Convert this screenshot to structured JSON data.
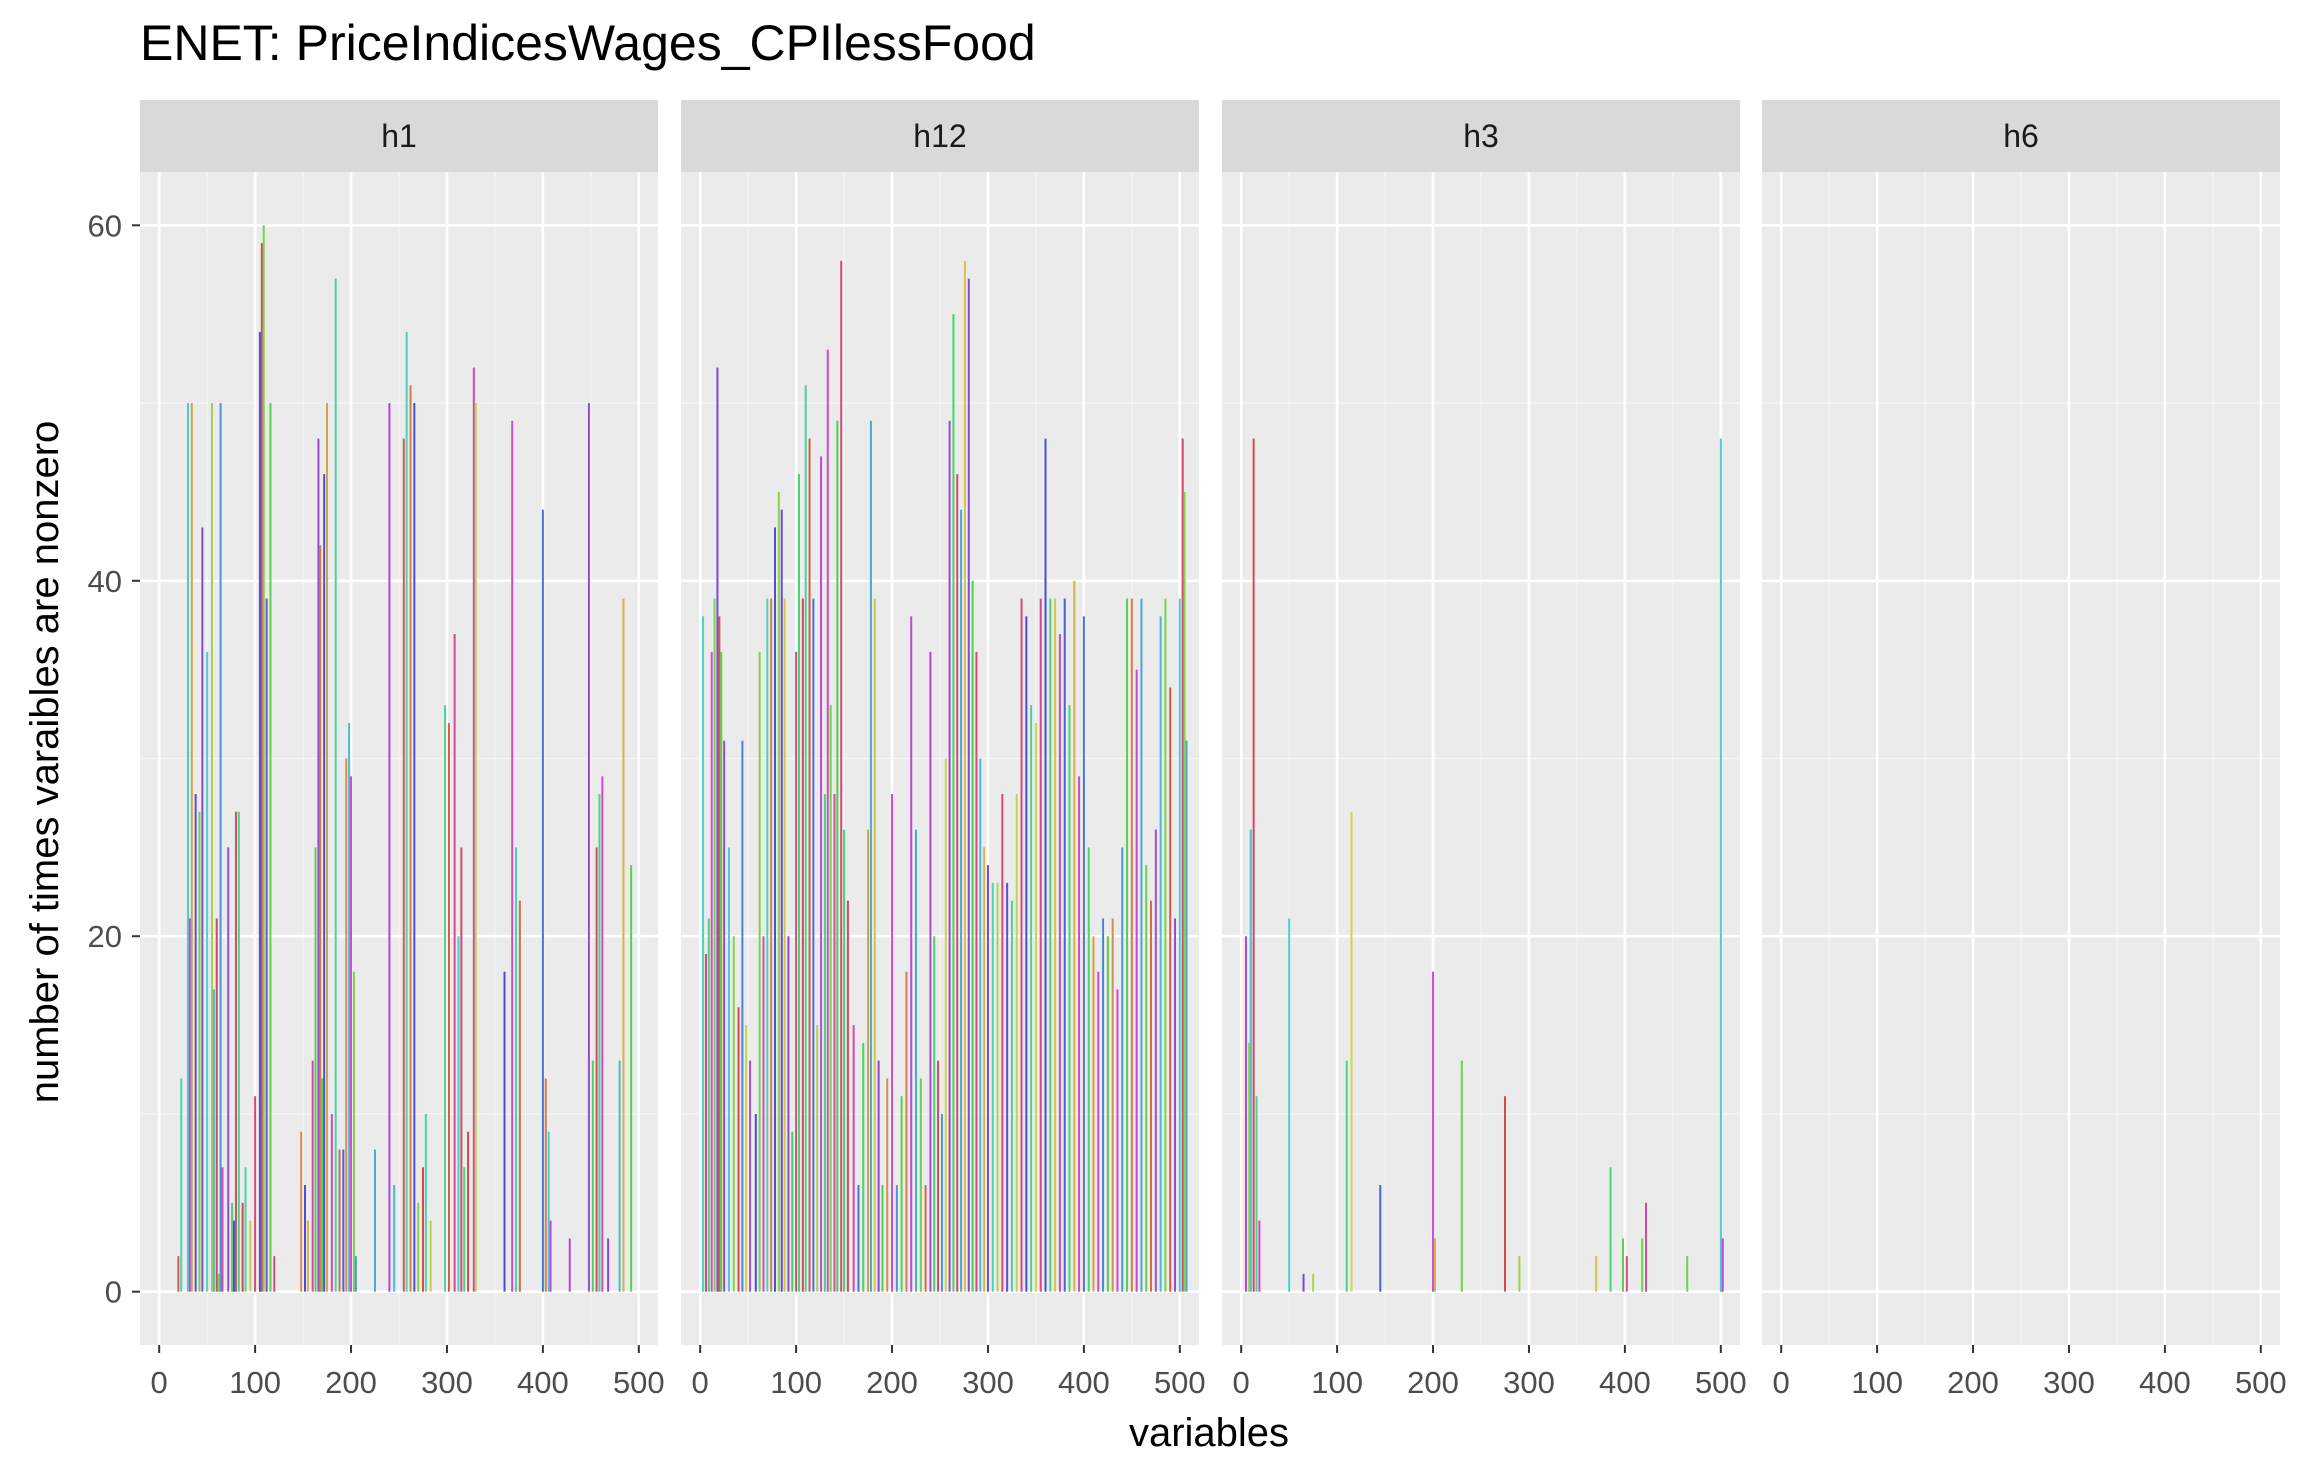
{
  "chart_data": {
    "type": "bar",
    "title": "ENET: PriceIndicesWages_CPIlessFood",
    "xlabel": "variables",
    "ylabel": "number of times varaibles are nonzero",
    "xlim": [
      -20,
      520
    ],
    "ylim": [
      -3,
      63
    ],
    "x_ticks": [
      0,
      100,
      200,
      300,
      400,
      500
    ],
    "x_tick_labels": [
      "0",
      "100",
      "200",
      "300",
      "400",
      "500"
    ],
    "y_ticks": [
      0,
      20,
      40,
      60
    ],
    "y_tick_labels": [
      "0",
      "20",
      "40",
      "60"
    ],
    "grid": true,
    "legend": "none",
    "facets": [
      {
        "label": "h1",
        "bars": [
          [
            20,
            2
          ],
          [
            23,
            12
          ],
          [
            30,
            50
          ],
          [
            32,
            21
          ],
          [
            34,
            50
          ],
          [
            38,
            28
          ],
          [
            42,
            27
          ],
          [
            45,
            43
          ],
          [
            50,
            36
          ],
          [
            55,
            50
          ],
          [
            57,
            17
          ],
          [
            60,
            21
          ],
          [
            62,
            1
          ],
          [
            64,
            50
          ],
          [
            66,
            7
          ],
          [
            72,
            25
          ],
          [
            76,
            5
          ],
          [
            78,
            4
          ],
          [
            80,
            27
          ],
          [
            83,
            27
          ],
          [
            87,
            5
          ],
          [
            90,
            7
          ],
          [
            95,
            4
          ],
          [
            100,
            11
          ],
          [
            105,
            54
          ],
          [
            107,
            59
          ],
          [
            109,
            60
          ],
          [
            112,
            39
          ],
          [
            116,
            50
          ],
          [
            120,
            2
          ],
          [
            148,
            9
          ],
          [
            152,
            6
          ],
          [
            155,
            4
          ],
          [
            160,
            13
          ],
          [
            163,
            25
          ],
          [
            166,
            48
          ],
          [
            168,
            42
          ],
          [
            170,
            12
          ],
          [
            172,
            46
          ],
          [
            175,
            50
          ],
          [
            180,
            10
          ],
          [
            184,
            57
          ],
          [
            188,
            8
          ],
          [
            192,
            8
          ],
          [
            195,
            30
          ],
          [
            198,
            32
          ],
          [
            200,
            29
          ],
          [
            203,
            18
          ],
          [
            205,
            2
          ],
          [
            225,
            8
          ],
          [
            240,
            50
          ],
          [
            245,
            6
          ],
          [
            255,
            48
          ],
          [
            258,
            54
          ],
          [
            262,
            51
          ],
          [
            266,
            50
          ],
          [
            270,
            5
          ],
          [
            275,
            7
          ],
          [
            278,
            10
          ],
          [
            283,
            4
          ],
          [
            298,
            33
          ],
          [
            302,
            32
          ],
          [
            308,
            37
          ],
          [
            312,
            20
          ],
          [
            315,
            25
          ],
          [
            318,
            7
          ],
          [
            322,
            9
          ],
          [
            328,
            52
          ],
          [
            330,
            50
          ],
          [
            360,
            18
          ],
          [
            368,
            49
          ],
          [
            372,
            25
          ],
          [
            376,
            22
          ],
          [
            400,
            44
          ],
          [
            403,
            12
          ],
          [
            406,
            9
          ],
          [
            408,
            4
          ],
          [
            428,
            3
          ],
          [
            448,
            50
          ],
          [
            452,
            13
          ],
          [
            456,
            25
          ],
          [
            459,
            28
          ],
          [
            462,
            29
          ],
          [
            468,
            3
          ],
          [
            480,
            13
          ],
          [
            484,
            39
          ],
          [
            492,
            24
          ]
        ]
      },
      {
        "label": "h12",
        "bars": [
          [
            3,
            38
          ],
          [
            6,
            19
          ],
          [
            9,
            21
          ],
          [
            12,
            36
          ],
          [
            15,
            39
          ],
          [
            18,
            52
          ],
          [
            20,
            38
          ],
          [
            22,
            36
          ],
          [
            25,
            31
          ],
          [
            30,
            25
          ],
          [
            35,
            20
          ],
          [
            40,
            16
          ],
          [
            44,
            31
          ],
          [
            48,
            15
          ],
          [
            52,
            13
          ],
          [
            58,
            10
          ],
          [
            62,
            36
          ],
          [
            66,
            20
          ],
          [
            70,
            39
          ],
          [
            74,
            39
          ],
          [
            78,
            43
          ],
          [
            82,
            45
          ],
          [
            85,
            44
          ],
          [
            88,
            39
          ],
          [
            92,
            20
          ],
          [
            96,
            9
          ],
          [
            100,
            36
          ],
          [
            103,
            46
          ],
          [
            107,
            39
          ],
          [
            110,
            51
          ],
          [
            114,
            48
          ],
          [
            118,
            39
          ],
          [
            122,
            15
          ],
          [
            126,
            47
          ],
          [
            130,
            28
          ],
          [
            133,
            53
          ],
          [
            136,
            33
          ],
          [
            140,
            28
          ],
          [
            143,
            49
          ],
          [
            147,
            58
          ],
          [
            150,
            26
          ],
          [
            154,
            22
          ],
          [
            160,
            15
          ],
          [
            165,
            6
          ],
          [
            170,
            14
          ],
          [
            175,
            26
          ],
          [
            178,
            49
          ],
          [
            182,
            39
          ],
          [
            186,
            13
          ],
          [
            190,
            6
          ],
          [
            195,
            12
          ],
          [
            200,
            28
          ],
          [
            205,
            6
          ],
          [
            210,
            11
          ],
          [
            215,
            18
          ],
          [
            220,
            38
          ],
          [
            225,
            26
          ],
          [
            230,
            12
          ],
          [
            235,
            6
          ],
          [
            240,
            36
          ],
          [
            244,
            20
          ],
          [
            248,
            13
          ],
          [
            252,
            10
          ],
          [
            256,
            30
          ],
          [
            260,
            49
          ],
          [
            264,
            55
          ],
          [
            268,
            46
          ],
          [
            272,
            44
          ],
          [
            276,
            58
          ],
          [
            280,
            57
          ],
          [
            284,
            40
          ],
          [
            288,
            36
          ],
          [
            292,
            30
          ],
          [
            296,
            25
          ],
          [
            300,
            24
          ],
          [
            305,
            23
          ],
          [
            310,
            23
          ],
          [
            315,
            28
          ],
          [
            320,
            23
          ],
          [
            325,
            22
          ],
          [
            330,
            28
          ],
          [
            335,
            39
          ],
          [
            340,
            38
          ],
          [
            345,
            33
          ],
          [
            350,
            32
          ],
          [
            355,
            39
          ],
          [
            360,
            48
          ],
          [
            365,
            39
          ],
          [
            370,
            39
          ],
          [
            375,
            37
          ],
          [
            380,
            39
          ],
          [
            385,
            33
          ],
          [
            390,
            40
          ],
          [
            395,
            29
          ],
          [
            400,
            38
          ],
          [
            405,
            25
          ],
          [
            410,
            20
          ],
          [
            415,
            18
          ],
          [
            420,
            21
          ],
          [
            425,
            20
          ],
          [
            430,
            21
          ],
          [
            435,
            17
          ],
          [
            440,
            25
          ],
          [
            445,
            39
          ],
          [
            450,
            39
          ],
          [
            455,
            35
          ],
          [
            460,
            39
          ],
          [
            465,
            24
          ],
          [
            470,
            22
          ],
          [
            475,
            26
          ],
          [
            480,
            38
          ],
          [
            485,
            39
          ],
          [
            490,
            34
          ],
          [
            495,
            21
          ],
          [
            500,
            39
          ],
          [
            503,
            48
          ],
          [
            505,
            45
          ],
          [
            507,
            31
          ]
        ]
      },
      {
        "label": "h3",
        "bars": [
          [
            5,
            20
          ],
          [
            8,
            14
          ],
          [
            10,
            26
          ],
          [
            13,
            48
          ],
          [
            16,
            11
          ],
          [
            19,
            4
          ],
          [
            50,
            21
          ],
          [
            65,
            1
          ],
          [
            75,
            1
          ],
          [
            110,
            13
          ],
          [
            115,
            27
          ],
          [
            145,
            6
          ],
          [
            200,
            18
          ],
          [
            202,
            3
          ],
          [
            230,
            13
          ],
          [
            275,
            11
          ],
          [
            290,
            2
          ],
          [
            370,
            2
          ],
          [
            385,
            7
          ],
          [
            398,
            3
          ],
          [
            402,
            2
          ],
          [
            418,
            3
          ],
          [
            422,
            5
          ],
          [
            465,
            2
          ],
          [
            500,
            48
          ],
          [
            502,
            3
          ]
        ]
      },
      {
        "label": "h6",
        "bars": []
      }
    ]
  },
  "colors": {
    "panel_bg": "#ebebeb",
    "strip_bg": "#d9d9d9",
    "grid_major": "#ffffff",
    "grid_minor": "#f5f5f5",
    "hue_palette": [
      "#f8766d",
      "#c49a00",
      "#53b400",
      "#00c094",
      "#00b6eb",
      "#a58aff",
      "#fb61d7"
    ]
  }
}
